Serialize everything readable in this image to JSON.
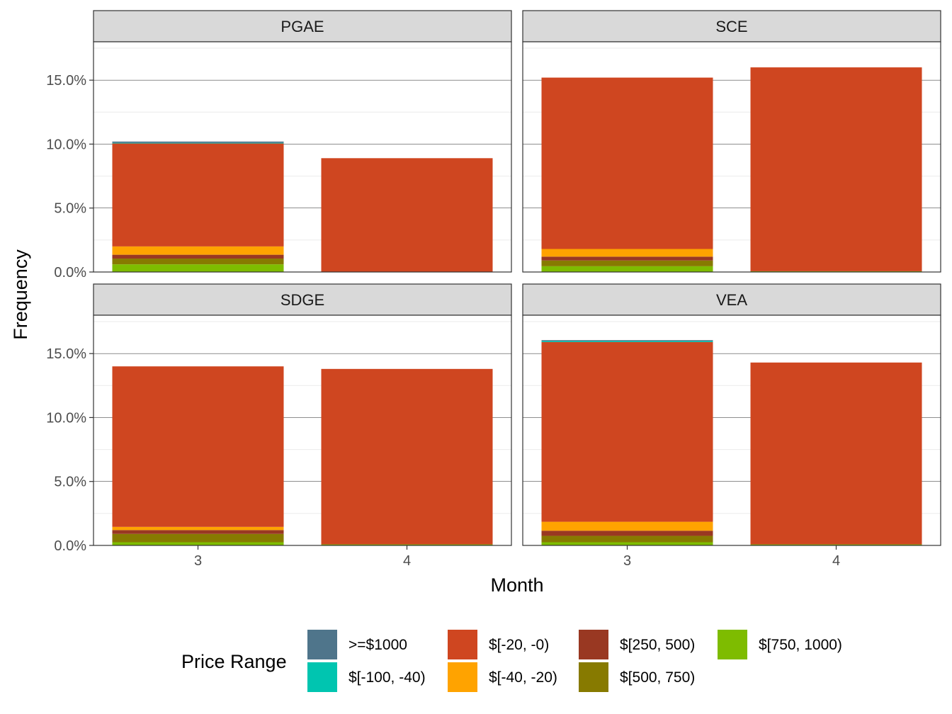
{
  "chart_data": {
    "type": "bar",
    "stacked": true,
    "xlabel": "Month",
    "ylabel": "Frequency",
    "categories": [
      "3",
      "4"
    ],
    "ylim": [
      0,
      0.18
    ],
    "yticks": [
      0,
      0.05,
      0.1,
      0.15
    ],
    "ytick_labels": [
      "0.0%",
      "5.0%",
      "10.0%",
      "15.0%"
    ],
    "grid": "on",
    "legend_title": "Price Range",
    "legend_position": "bottom",
    "series": [
      {
        "name": ">=$1000",
        "color": "#4f758b"
      },
      {
        "name": "$[-100, -40)",
        "color": "#00c5b0"
      },
      {
        "name": "$[-20, -0)",
        "color": "#cf4620"
      },
      {
        "name": "$[-40, -20)",
        "color": "#ffa300"
      },
      {
        "name": "$[250, 500)",
        "color": "#993822"
      },
      {
        "name": "$[500, 750)",
        "color": "#877a00"
      },
      {
        "name": "$[750, 1000)",
        "color": "#7ebc00"
      }
    ],
    "stack_order": [
      "$[750, 1000)",
      "$[500, 750)",
      "$[250, 500)",
      "$[-40, -20)",
      "$[-20, -0)",
      "$[-100, -40)",
      ">=$1000"
    ],
    "panels": [
      {
        "name": "PGAE",
        "values": {
          "3": {
            "$[750, 1000)": 0.006,
            "$[500, 750)": 0.0045,
            "$[250, 500)": 0.003,
            "$[-40, -20)": 0.0065,
            "$[-20, -0)": 0.0805,
            "$[-100, -40)": 0.0005,
            ">=$1000": 0.001
          },
          "4": {
            "$[750, 1000)": 0.0,
            "$[500, 750)": 0.0,
            "$[250, 500)": 0.0,
            "$[-40, -20)": 0.0,
            "$[-20, -0)": 0.089,
            "$[-100, -40)": 0.0,
            ">=$1000": 0.0
          }
        }
      },
      {
        "name": "SCE",
        "values": {
          "3": {
            "$[750, 1000)": 0.0045,
            "$[500, 750)": 0.0045,
            "$[250, 500)": 0.003,
            "$[-40, -20)": 0.006,
            "$[-20, -0)": 0.134,
            "$[-100, -40)": 0.0,
            ">=$1000": 0.0
          },
          "4": {
            "$[750, 1000)": 0.0006,
            "$[500, 750)": 0.0,
            "$[250, 500)": 0.0,
            "$[-40, -20)": 0.0,
            "$[-20, -0)": 0.1594,
            "$[-100, -40)": 0.0,
            ">=$1000": 0.0
          }
        }
      },
      {
        "name": "SDGE",
        "values": {
          "3": {
            "$[750, 1000)": 0.0025,
            "$[500, 750)": 0.0065,
            "$[250, 500)": 0.003,
            "$[-40, -20)": 0.0025,
            "$[-20, -0)": 0.1255,
            "$[-100, -40)": 0.0,
            ">=$1000": 0.0
          },
          "4": {
            "$[750, 1000)": 0.0008,
            "$[500, 750)": 0.0,
            "$[250, 500)": 0.0,
            "$[-40, -20)": 0.0,
            "$[-20, -0)": 0.1372,
            "$[-100, -40)": 0.0,
            ">=$1000": 0.0
          }
        }
      },
      {
        "name": "VEA",
        "values": {
          "3": {
            "$[750, 1000)": 0.0025,
            "$[500, 750)": 0.005,
            "$[250, 500)": 0.004,
            "$[-40, -20)": 0.007,
            "$[-20, -0)": 0.1405,
            "$[-100, -40)": 0.0008,
            ">=$1000": 0.0007
          },
          "4": {
            "$[750, 1000)": 0.0008,
            "$[500, 750)": 0.0,
            "$[250, 500)": 0.0,
            "$[-40, -20)": 0.0,
            "$[-20, -0)": 0.1422,
            "$[-100, -40)": 0.0,
            ">=$1000": 0.0
          }
        }
      }
    ]
  }
}
